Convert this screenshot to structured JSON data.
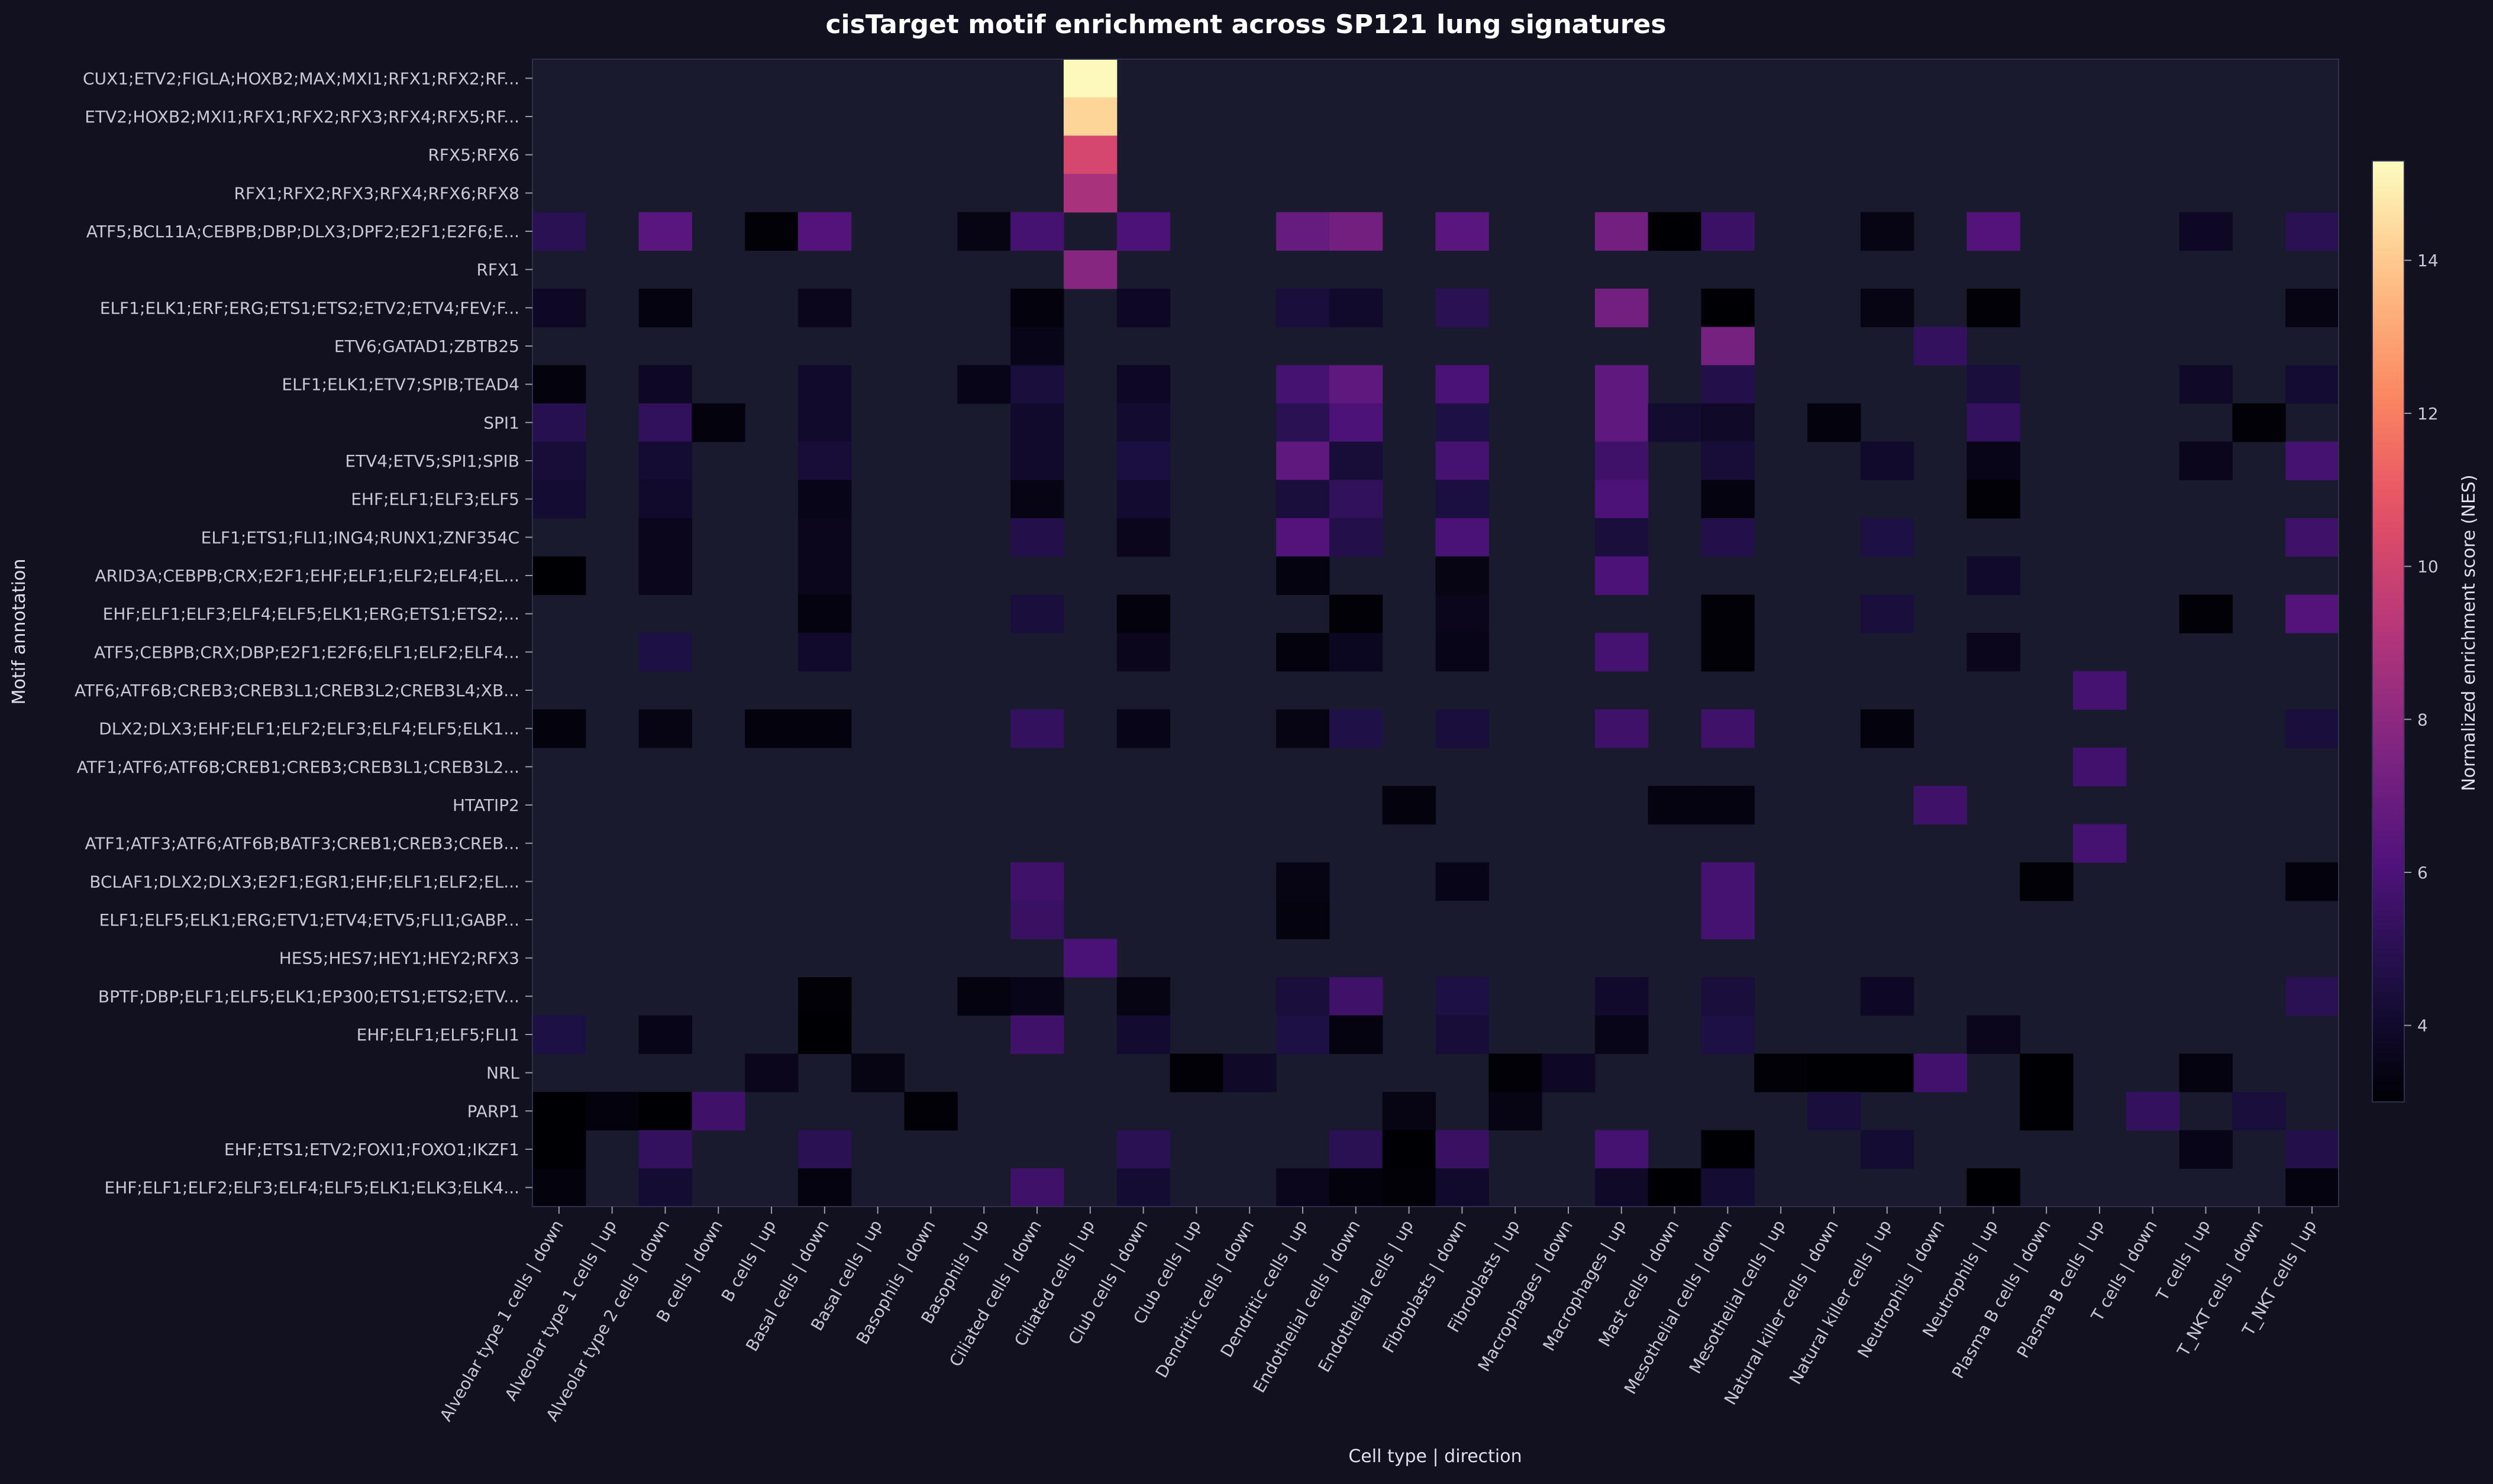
{
  "chart_data": {
    "type": "heatmap",
    "title": "cisTarget motif enrichment across SP121 lung signatures",
    "xlabel": "Cell type | direction",
    "ylabel": "Motif annotation",
    "colorbar": {
      "label": "Normalized enrichment score (NES)",
      "min": 3,
      "max": 15.3,
      "ticks": [
        4,
        6,
        8,
        10,
        12,
        14
      ],
      "colormap": "magma"
    },
    "grid": false,
    "missing_color": "#1a1a2e",
    "x": [
      "Alveolar type 1 cells | down",
      "Alveolar type 1 cells | up",
      "Alveolar type 2 cells | down",
      "B cells | down",
      "B cells | up",
      "Basal cells | down",
      "Basal cells | up",
      "Basophils | down",
      "Basophils | up",
      "Ciliated cells | down",
      "Ciliated cells | up",
      "Club cells | down",
      "Club cells | up",
      "Dendritic cells | down",
      "Dendritic cells | up",
      "Endothelial cells | down",
      "Endothelial cells | up",
      "Fibroblasts | down",
      "Fibroblasts | up",
      "Macrophages | down",
      "Macrophages | up",
      "Mast cells | down",
      "Mesothelial cells | down",
      "Mesothelial cells | up",
      "Natural killer cells | down",
      "Natural killer cells | up",
      "Neutrophils | down",
      "Neutrophils | up",
      "Plasma B cells | down",
      "Plasma B cells | up",
      "T cells | down",
      "T cells | up",
      "T_NKT cells | down",
      "T_NKT cells | up"
    ],
    "y": [
      "CUX1;ETV2;FIGLA;HOXB2;MAX;MXI1;RFX1;RFX2;RF...",
      "ETV2;HOXB2;MXI1;RFX1;RFX2;RFX3;RFX4;RFX5;RF...",
      "RFX5;RFX6",
      "RFX1;RFX2;RFX3;RFX4;RFX6;RFX8",
      "ATF5;BCL11A;CEBPB;DBP;DLX3;DPF2;E2F1;E2F6;E...",
      "RFX1",
      "ELF1;ELK1;ERF;ERG;ETS1;ETS2;ETV2;ETV4;FEV;F...",
      "ETV6;GATAD1;ZBTB25",
      "ELF1;ELK1;ETV7;SPIB;TEAD4",
      "SPI1",
      "ETV4;ETV5;SPI1;SPIB",
      "EHF;ELF1;ELF3;ELF5",
      "ELF1;ETS1;FLI1;ING4;RUNX1;ZNF354C",
      "ARID3A;CEBPB;CRX;E2F1;EHF;ELF1;ELF2;ELF4;EL...",
      "EHF;ELF1;ELF3;ELF4;ELF5;ELK1;ERG;ETS1;ETS2;...",
      "ATF5;CEBPB;CRX;DBP;E2F1;E2F6;ELF1;ELF2;ELF4...",
      "ATF6;ATF6B;CREB3;CREB3L1;CREB3L2;CREB3L4;XB...",
      "DLX2;DLX3;EHF;ELF1;ELF2;ELF3;ELF4;ELF5;ELK1...",
      "ATF1;ATF6;ATF6B;CREB1;CREB3;CREB3L1;CREB3L2...",
      "HTATIP2",
      "ATF1;ATF3;ATF6;ATF6B;BATF3;CREB1;CREB3;CREB...",
      "BCLAF1;DLX2;DLX3;E2F1;EGR1;EHF;ELF1;ELF2;EL...",
      "ELF1;ELF5;ELK1;ERG;ETV1;ETV4;ETV5;FLI1;GABP...",
      "HES5;HES7;HEY1;HEY2;RFX3",
      "BPTF;DBP;ELF1;ELF5;ELK1;EP300;ETS1;ETS2;ETV...",
      "EHF;ELF1;ELF5;FLI1",
      "NRL",
      "PARP1",
      "EHF;ETS1;ETV2;FOXI1;FOXO1;IKZF1",
      "EHF;ELF1;ELF2;ELF3;ELF4;ELF5;ELK1;ELK3;ELK4..."
    ],
    "cells": [
      [
        0,
        10,
        15.2
      ],
      [
        1,
        10,
        14.3
      ],
      [
        2,
        10,
        10.2
      ],
      [
        3,
        10,
        8.8
      ],
      [
        5,
        10,
        7.8
      ],
      [
        4,
        0,
        5.0
      ],
      [
        4,
        2,
        6.4
      ],
      [
        4,
        4,
        3.1
      ],
      [
        4,
        5,
        6.2
      ],
      [
        4,
        8,
        3.4
      ],
      [
        4,
        9,
        5.8
      ],
      [
        4,
        11,
        6.0
      ],
      [
        4,
        14,
        6.8
      ],
      [
        4,
        15,
        7.2
      ],
      [
        4,
        17,
        6.4
      ],
      [
        4,
        20,
        7.2
      ],
      [
        4,
        21,
        3.0
      ],
      [
        4,
        22,
        5.5
      ],
      [
        4,
        25,
        3.4
      ],
      [
        4,
        27,
        6.2
      ],
      [
        4,
        31,
        3.8
      ],
      [
        4,
        33,
        5.0
      ],
      [
        6,
        0,
        3.8
      ],
      [
        6,
        2,
        3.3
      ],
      [
        6,
        5,
        3.6
      ],
      [
        6,
        9,
        3.2
      ],
      [
        6,
        11,
        3.8
      ],
      [
        6,
        14,
        4.4
      ],
      [
        6,
        15,
        4.0
      ],
      [
        6,
        17,
        5.0
      ],
      [
        6,
        20,
        7.2
      ],
      [
        6,
        22,
        3.0
      ],
      [
        6,
        25,
        3.4
      ],
      [
        6,
        27,
        3.1
      ],
      [
        6,
        33,
        3.4
      ],
      [
        7,
        9,
        3.5
      ],
      [
        7,
        22,
        7.3
      ],
      [
        7,
        26,
        5.3
      ],
      [
        8,
        0,
        3.2
      ],
      [
        8,
        2,
        3.8
      ],
      [
        8,
        5,
        4.0
      ],
      [
        8,
        8,
        3.5
      ],
      [
        8,
        9,
        4.4
      ],
      [
        8,
        11,
        3.8
      ],
      [
        8,
        14,
        5.8
      ],
      [
        8,
        15,
        6.6
      ],
      [
        8,
        17,
        5.9
      ],
      [
        8,
        20,
        6.6
      ],
      [
        8,
        22,
        4.8
      ],
      [
        8,
        27,
        4.4
      ],
      [
        8,
        31,
        3.9
      ],
      [
        8,
        33,
        4.2
      ],
      [
        9,
        0,
        4.9
      ],
      [
        9,
        2,
        5.2
      ],
      [
        9,
        3,
        3.2
      ],
      [
        9,
        5,
        4.0
      ],
      [
        9,
        9,
        4.0
      ],
      [
        9,
        11,
        4.1
      ],
      [
        9,
        14,
        5.0
      ],
      [
        9,
        15,
        6.0
      ],
      [
        9,
        17,
        4.6
      ],
      [
        9,
        20,
        6.6
      ],
      [
        9,
        21,
        4.1
      ],
      [
        9,
        22,
        3.9
      ],
      [
        9,
        24,
        3.2
      ],
      [
        9,
        27,
        5.3
      ],
      [
        9,
        32,
        3.1
      ],
      [
        10,
        0,
        4.3
      ],
      [
        10,
        2,
        4.2
      ],
      [
        10,
        5,
        4.3
      ],
      [
        10,
        9,
        4.0
      ],
      [
        10,
        11,
        4.5
      ],
      [
        10,
        14,
        6.6
      ],
      [
        10,
        15,
        4.3
      ],
      [
        10,
        17,
        5.8
      ],
      [
        10,
        20,
        5.6
      ],
      [
        10,
        22,
        4.3
      ],
      [
        10,
        25,
        4.0
      ],
      [
        10,
        27,
        3.5
      ],
      [
        10,
        31,
        3.6
      ],
      [
        10,
        33,
        5.8
      ],
      [
        11,
        0,
        4.2
      ],
      [
        11,
        2,
        4.0
      ],
      [
        11,
        5,
        3.5
      ],
      [
        11,
        9,
        3.4
      ],
      [
        11,
        11,
        4.1
      ],
      [
        11,
        14,
        4.4
      ],
      [
        11,
        15,
        5.2
      ],
      [
        11,
        17,
        4.5
      ],
      [
        11,
        20,
        6.0
      ],
      [
        11,
        22,
        3.3
      ],
      [
        11,
        27,
        3.1
      ],
      [
        12,
        2,
        3.6
      ],
      [
        12,
        5,
        3.6
      ],
      [
        12,
        9,
        4.8
      ],
      [
        12,
        11,
        3.6
      ],
      [
        12,
        14,
        6.2
      ],
      [
        12,
        15,
        4.8
      ],
      [
        12,
        17,
        5.9
      ],
      [
        12,
        20,
        4.4
      ],
      [
        12,
        22,
        4.8
      ],
      [
        12,
        25,
        4.6
      ],
      [
        12,
        33,
        5.6
      ],
      [
        13,
        0,
        3.0
      ],
      [
        13,
        2,
        3.6
      ],
      [
        13,
        5,
        3.6
      ],
      [
        13,
        14,
        3.3
      ],
      [
        13,
        17,
        3.4
      ],
      [
        13,
        20,
        6.0
      ],
      [
        13,
        27,
        4.0
      ],
      [
        14,
        5,
        3.3
      ],
      [
        14,
        9,
        4.4
      ],
      [
        14,
        11,
        3.2
      ],
      [
        14,
        15,
        3.1
      ],
      [
        14,
        17,
        3.6
      ],
      [
        14,
        22,
        3.1
      ],
      [
        14,
        25,
        4.4
      ],
      [
        14,
        31,
        3.1
      ],
      [
        14,
        33,
        6.2
      ],
      [
        15,
        2,
        4.6
      ],
      [
        15,
        5,
        4.0
      ],
      [
        15,
        11,
        3.6
      ],
      [
        15,
        14,
        3.2
      ],
      [
        15,
        15,
        3.7
      ],
      [
        15,
        17,
        3.5
      ],
      [
        15,
        20,
        5.8
      ],
      [
        15,
        22,
        3.1
      ],
      [
        15,
        27,
        3.6
      ],
      [
        16,
        29,
        5.8
      ],
      [
        17,
        0,
        3.2
      ],
      [
        17,
        2,
        3.4
      ],
      [
        17,
        4,
        3.2
      ],
      [
        17,
        5,
        3.2
      ],
      [
        17,
        9,
        5.3
      ],
      [
        17,
        11,
        3.5
      ],
      [
        17,
        14,
        3.4
      ],
      [
        17,
        15,
        4.7
      ],
      [
        17,
        17,
        4.4
      ],
      [
        17,
        20,
        5.6
      ],
      [
        17,
        22,
        5.6
      ],
      [
        17,
        25,
        3.2
      ],
      [
        17,
        33,
        4.4
      ],
      [
        18,
        29,
        5.7
      ],
      [
        19,
        16,
        3.2
      ],
      [
        19,
        21,
        3.3
      ],
      [
        19,
        22,
        3.3
      ],
      [
        19,
        26,
        5.6
      ],
      [
        20,
        29,
        5.8
      ],
      [
        21,
        9,
        5.6
      ],
      [
        21,
        14,
        3.4
      ],
      [
        21,
        17,
        3.5
      ],
      [
        21,
        22,
        5.8
      ],
      [
        21,
        28,
        3.1
      ],
      [
        21,
        33,
        3.2
      ],
      [
        22,
        9,
        5.4
      ],
      [
        22,
        14,
        3.3
      ],
      [
        22,
        22,
        5.8
      ],
      [
        23,
        10,
        5.9
      ],
      [
        24,
        5,
        3.1
      ],
      [
        24,
        8,
        3.3
      ],
      [
        24,
        9,
        3.5
      ],
      [
        24,
        11,
        3.4
      ],
      [
        24,
        14,
        4.4
      ],
      [
        24,
        15,
        5.6
      ],
      [
        24,
        17,
        4.6
      ],
      [
        24,
        20,
        4.0
      ],
      [
        24,
        22,
        4.4
      ],
      [
        24,
        25,
        3.8
      ],
      [
        24,
        33,
        5.0
      ],
      [
        25,
        0,
        4.6
      ],
      [
        25,
        2,
        3.5
      ],
      [
        25,
        5,
        3.0
      ],
      [
        25,
        9,
        5.6
      ],
      [
        25,
        11,
        4.1
      ],
      [
        25,
        14,
        4.6
      ],
      [
        25,
        15,
        3.3
      ],
      [
        25,
        17,
        4.3
      ],
      [
        25,
        20,
        3.5
      ],
      [
        25,
        22,
        4.6
      ],
      [
        25,
        27,
        3.6
      ],
      [
        26,
        4,
        3.6
      ],
      [
        26,
        6,
        3.4
      ],
      [
        26,
        12,
        3.1
      ],
      [
        26,
        13,
        3.9
      ],
      [
        26,
        18,
        3.1
      ],
      [
        26,
        19,
        3.8
      ],
      [
        26,
        23,
        3.1
      ],
      [
        26,
        24,
        3.0
      ],
      [
        26,
        25,
        3.0
      ],
      [
        26,
        26,
        5.7
      ],
      [
        26,
        28,
        3.0
      ],
      [
        26,
        31,
        3.3
      ],
      [
        27,
        0,
        3.0
      ],
      [
        27,
        1,
        3.2
      ],
      [
        27,
        2,
        3.0
      ],
      [
        27,
        3,
        5.6
      ],
      [
        27,
        7,
        3.1
      ],
      [
        27,
        16,
        3.4
      ],
      [
        27,
        18,
        3.4
      ],
      [
        27,
        24,
        4.4
      ],
      [
        27,
        28,
        3.0
      ],
      [
        27,
        30,
        5.3
      ],
      [
        27,
        32,
        4.4
      ],
      [
        28,
        0,
        3.0
      ],
      [
        28,
        2,
        5.3
      ],
      [
        28,
        5,
        5.0
      ],
      [
        28,
        11,
        5.0
      ],
      [
        28,
        15,
        5.0
      ],
      [
        28,
        16,
        3.0
      ],
      [
        28,
        17,
        5.4
      ],
      [
        28,
        20,
        5.8
      ],
      [
        28,
        22,
        3.0
      ],
      [
        28,
        25,
        4.2
      ],
      [
        28,
        31,
        3.5
      ],
      [
        28,
        33,
        4.8
      ],
      [
        29,
        0,
        3.2
      ],
      [
        29,
        2,
        4.2
      ],
      [
        29,
        5,
        3.3
      ],
      [
        29,
        9,
        5.6
      ],
      [
        29,
        11,
        4.2
      ],
      [
        29,
        14,
        3.6
      ],
      [
        29,
        15,
        3.2
      ],
      [
        29,
        16,
        3.1
      ],
      [
        29,
        17,
        4.0
      ],
      [
        29,
        20,
        3.9
      ],
      [
        29,
        21,
        3.0
      ],
      [
        29,
        22,
        4.2
      ],
      [
        29,
        27,
        3.0
      ],
      [
        29,
        33,
        3.3
      ]
    ]
  }
}
